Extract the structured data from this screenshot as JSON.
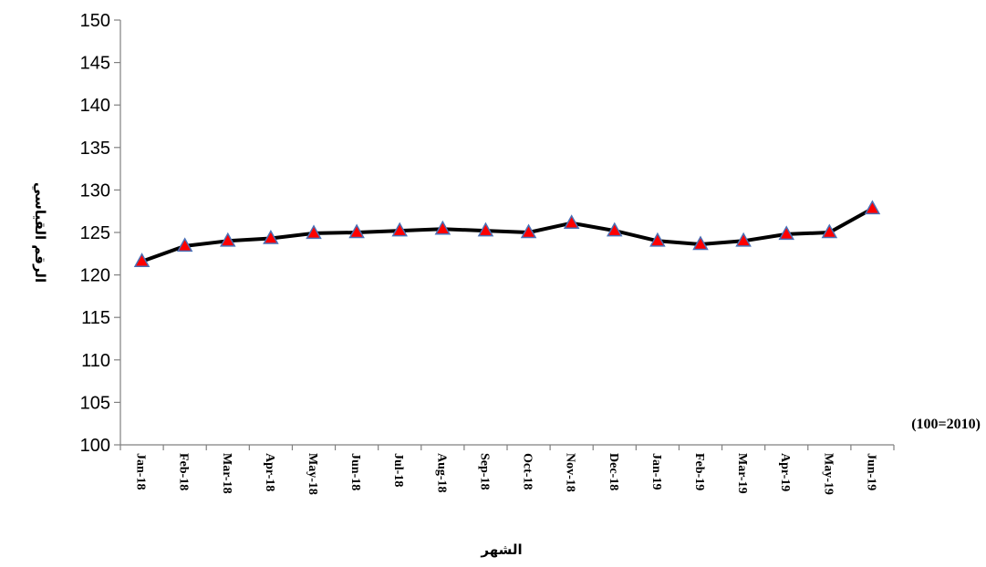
{
  "chart_data": {
    "type": "line",
    "title": "",
    "xlabel": "الشهر",
    "ylabel": "الرقم القياسي",
    "annotation": "(100=2010)",
    "ylim": [
      100,
      150
    ],
    "yticks": [
      100,
      105,
      110,
      115,
      120,
      125,
      130,
      135,
      140,
      145,
      150
    ],
    "grid": false,
    "categories": [
      "Jan-18",
      "Feb-18",
      "Mar-18",
      "Apr-18",
      "May-18",
      "Jun-18",
      "Jul-18",
      "Aug-18",
      "Sep-18",
      "Oct-18",
      "Nov-18",
      "Dec-18",
      "Jan-19",
      "Feb-19",
      "Mar-19",
      "Apr-19",
      "May-19",
      "Jun-19"
    ],
    "series": [
      {
        "values": [
          121.6,
          123.4,
          124.0,
          124.3,
          124.9,
          125.0,
          125.2,
          125.4,
          125.2,
          125.0,
          126.1,
          125.2,
          124.0,
          123.6,
          124.0,
          124.8,
          125.0,
          127.8
        ],
        "line_color": "#000000",
        "marker_color": "#ff0000",
        "marker_edge_color": "#4a6fb5",
        "marker": "triangle"
      }
    ]
  }
}
